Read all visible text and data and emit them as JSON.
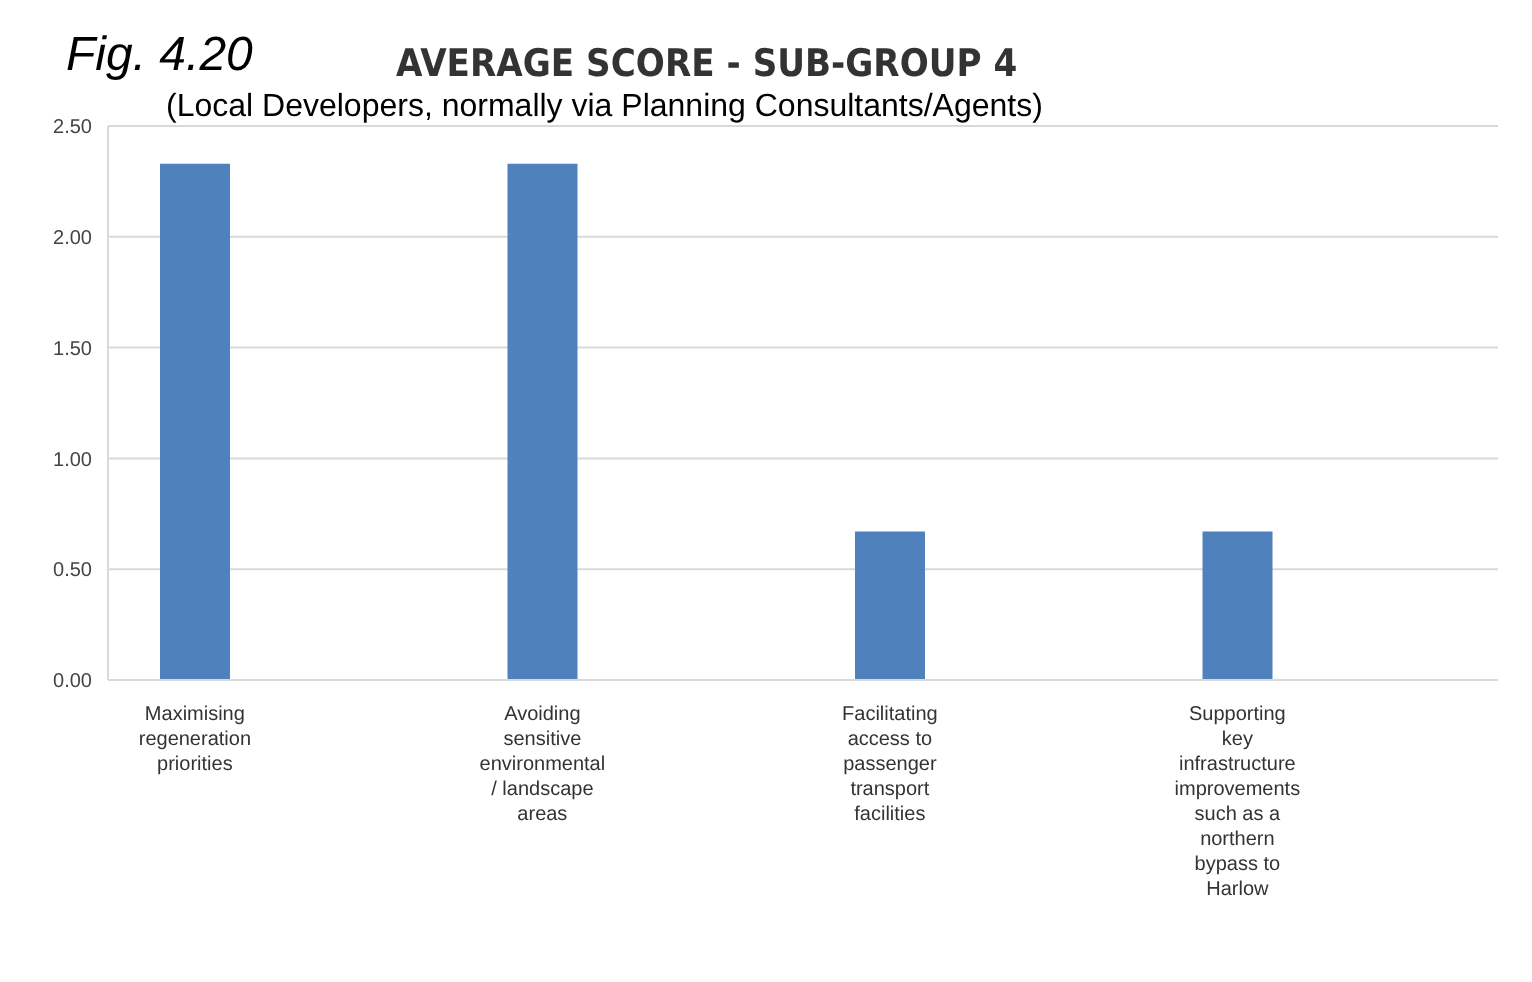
{
  "chart_data": {
    "type": "bar",
    "title": "AVERAGE SCORE - SUB-GROUP 4",
    "subtitle": "(Local Developers, normally via Planning Consultants/Agents)",
    "annotations": [
      "Fig. 4.20"
    ],
    "categories": [
      "Maximising regeneration priorities",
      null,
      "Avoiding sensitive environmental / landscape areas",
      null,
      "Facilitating access to passenger transport facilities",
      null,
      "Supporting key infrastructure improvements such as a northern bypass to Harlow",
      null
    ],
    "values": [
      2.33,
      null,
      2.33,
      null,
      0.67,
      null,
      0.67,
      null
    ],
    "color": "#4f81bd",
    "ylim": [
      0,
      2.5
    ],
    "yticks": [
      {
        "value": 0,
        "label": "0.00"
      },
      {
        "value": 0.5,
        "label": "0.50"
      },
      {
        "value": 1,
        "label": "1.00"
      },
      {
        "value": 1.5,
        "label": "1.50"
      },
      {
        "value": 2,
        "label": "2.00"
      },
      {
        "value": 2.5,
        "label": "2.50"
      }
    ],
    "grid": "y",
    "legend": false
  }
}
